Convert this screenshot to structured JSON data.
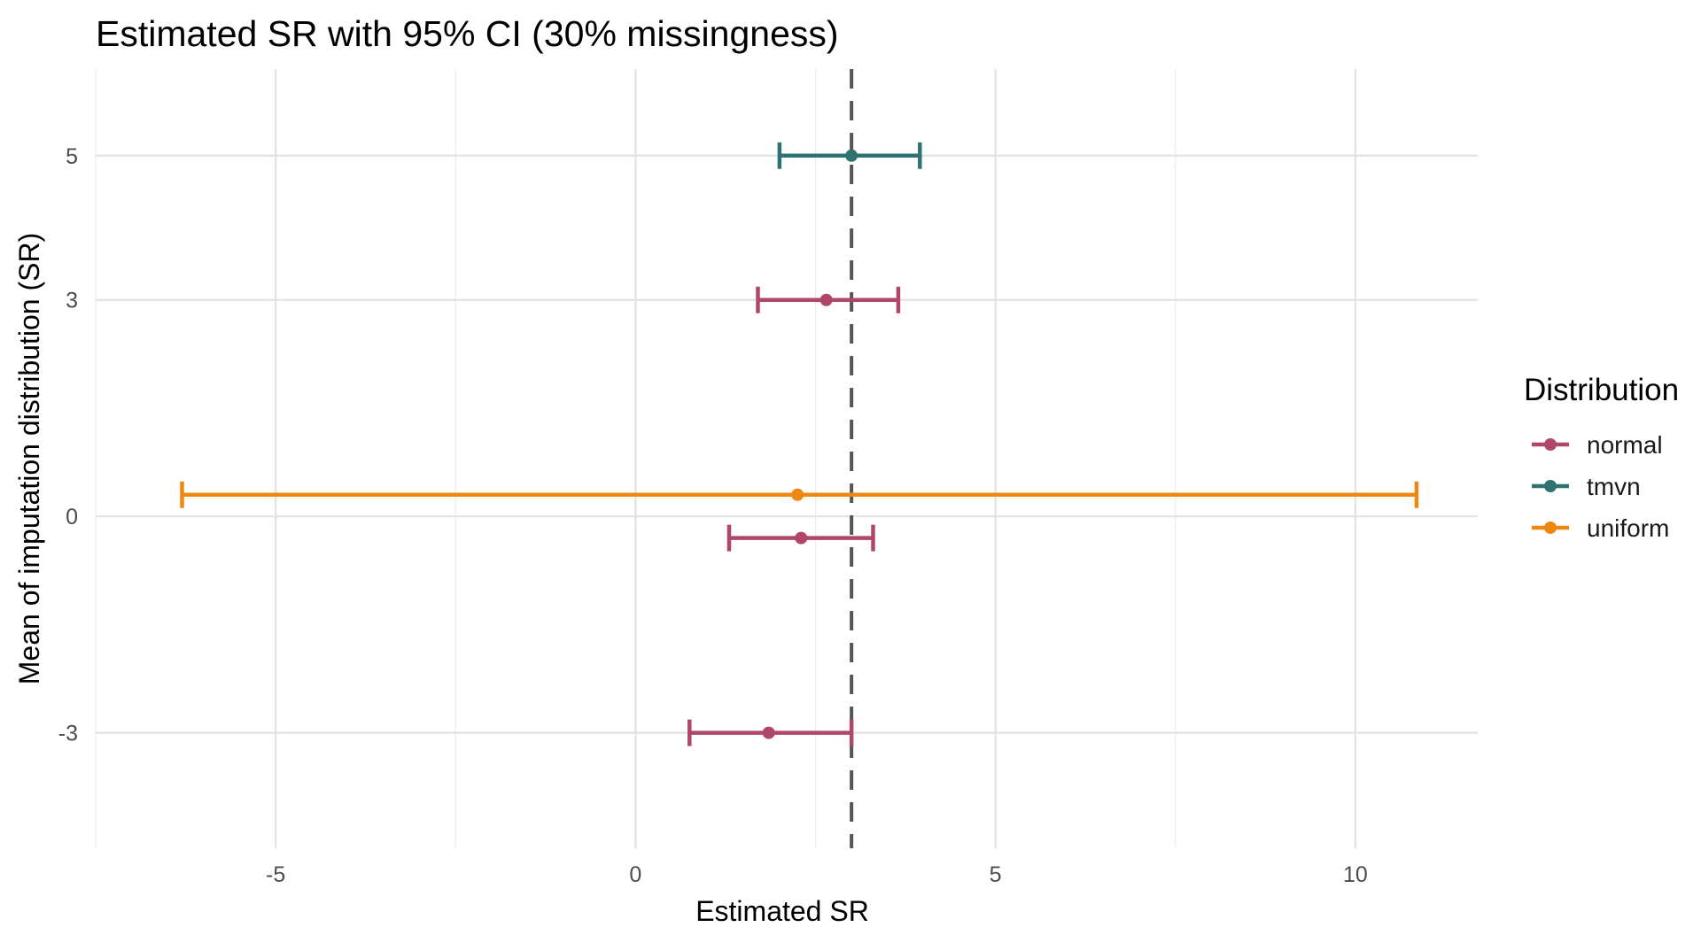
{
  "chart_data": {
    "type": "errorbar",
    "title": "Estimated SR with 95% CI (30% missingness)",
    "xlabel": "Estimated SR",
    "ylabel": "Mean of imputation distribution (SR)",
    "xlim": [
      -7.5,
      11.7
    ],
    "ylim": [
      -4.6,
      6.2
    ],
    "x_ticks": [
      -5,
      0,
      5,
      10
    ],
    "y_ticks": [
      -3,
      0,
      3,
      5
    ],
    "reference_line": {
      "x": 3,
      "style": "dashed",
      "color": "#555555"
    },
    "grid": true,
    "legend": {
      "title": "Distribution",
      "position": "right",
      "entries": [
        {
          "name": "normal",
          "color": "#B0476A"
        },
        {
          "name": "tmvn",
          "color": "#2E7272"
        },
        {
          "name": "uniform",
          "color": "#EE8810"
        }
      ]
    },
    "series": [
      {
        "name": "normal",
        "color": "#B0476A",
        "points": [
          {
            "y": 3,
            "x": 2.65,
            "lower": 1.7,
            "upper": 3.65
          },
          {
            "y": -0.3,
            "x": 2.3,
            "lower": 1.3,
            "upper": 3.3
          },
          {
            "y": -3,
            "x": 1.85,
            "lower": 0.75,
            "upper": 3.0
          }
        ]
      },
      {
        "name": "tmvn",
        "color": "#2E7272",
        "points": [
          {
            "y": 5,
            "x": 3.0,
            "lower": 2.0,
            "upper": 3.95
          }
        ]
      },
      {
        "name": "uniform",
        "color": "#EE8810",
        "points": [
          {
            "y": 0.3,
            "x": 2.25,
            "lower": -6.3,
            "upper": 10.85
          }
        ]
      }
    ]
  }
}
